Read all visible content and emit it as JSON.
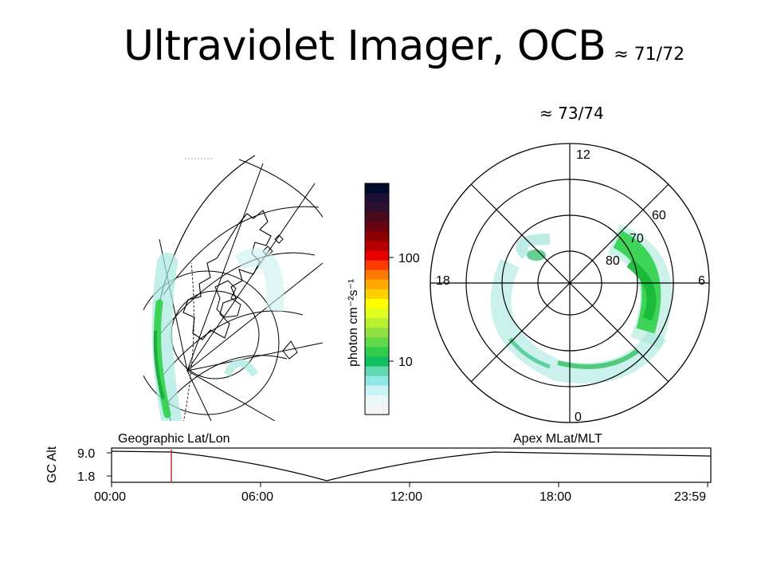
{
  "slide": {
    "title": "Ultraviolet Imager, OCB",
    "title_annotation": "≈ 71/72",
    "right_annotation": "≈ 73/74"
  },
  "colorbar": {
    "label": "photon cm⁻²s⁻¹",
    "tick_100": "100",
    "tick_10": "10",
    "colors": [
      "#000a2a",
      "#1b0f35",
      "#2d1030",
      "#4a0b1c",
      "#6a0410",
      "#8c0000",
      "#b80000",
      "#e80000",
      "#ff3a00",
      "#ff7a00",
      "#ffa800",
      "#ffd000",
      "#ffff00",
      "#e0ff20",
      "#b8f030",
      "#8fe040",
      "#60d84a",
      "#30cc50",
      "#10c060",
      "#60d8b0",
      "#90e8e8",
      "#c8f4f4",
      "#e8f8f8",
      "#f4f4f4"
    ]
  },
  "polar": {
    "label_12": "12",
    "label_18": "18",
    "label_6": "6",
    "label_0": "0",
    "label_60": "60",
    "label_70": "70",
    "label_80": "80"
  },
  "map": {
    "label": "Geographic Lat/Lon"
  },
  "altitude_plot": {
    "ylabel": "GC Alt",
    "right_label": "Apex MLat/MLT",
    "yticks": [
      "9.0",
      "1.8"
    ],
    "xticks": [
      "00:00",
      "06:00",
      "12:00",
      "18:00",
      "23:59"
    ]
  },
  "colors": {
    "aurora_green": "#2fd04a",
    "aurora_cyan": "#a8e8e0",
    "marker_red": "#c03020"
  }
}
